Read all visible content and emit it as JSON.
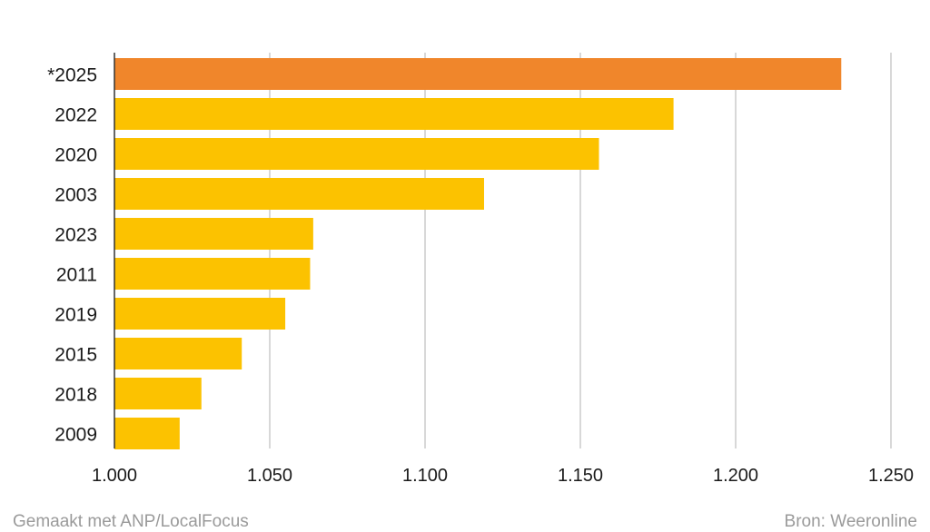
{
  "chart_data": {
    "type": "bar",
    "orientation": "horizontal",
    "title": "",
    "xlabel": "",
    "ylabel": "",
    "categories": [
      "*2025",
      "2022",
      "2020",
      "2003",
      "2023",
      "2011",
      "2019",
      "2015",
      "2018",
      "2009"
    ],
    "values": [
      1234,
      1180,
      1156,
      1119,
      1064,
      1063,
      1055,
      1041,
      1028,
      1021
    ],
    "xlim": [
      1000,
      1250
    ],
    "xticks": [
      1000,
      1050,
      1100,
      1150,
      1200,
      1250
    ],
    "xtick_labels": [
      "1.000",
      "1.050",
      "1.100",
      "1.150",
      "1.200",
      "1.250"
    ],
    "grid": "vertical",
    "highlight_category": "*2025",
    "colors": {
      "highlight": "#F0862B",
      "default": "#FCC200",
      "grid": "#cccccc",
      "axis": "#333333"
    }
  },
  "footer": {
    "left": "Gemaakt met ANP/LocalFocus",
    "right": "Bron: Weeronline"
  }
}
